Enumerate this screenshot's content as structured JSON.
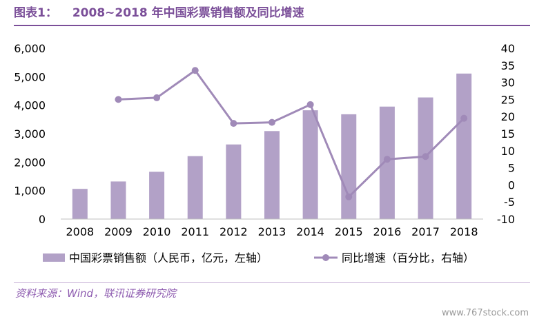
{
  "figure": {
    "label": "图表1：",
    "title": "2008~2018 年中国彩票销售额及同比增速",
    "source": "资料来源：Wind，联讯证券研究院",
    "watermark": "www.767stock.com"
  },
  "colors": {
    "accent": "#7b4f99",
    "bar": "#b2a1c7",
    "line": "#a08ab8",
    "axis": "#bfbfbf",
    "text": "#000000"
  },
  "chart_data": {
    "type": "bar",
    "categories": [
      "2008",
      "2009",
      "2010",
      "2011",
      "2012",
      "2013",
      "2014",
      "2015",
      "2016",
      "2017",
      "2018"
    ],
    "series": [
      {
        "name": "中国彩票销售额（人民币，亿元，左轴）",
        "type": "bar",
        "axis": "left",
        "values": [
          1060,
          1320,
          1660,
          2210,
          2620,
          3090,
          3820,
          3680,
          3950,
          4270,
          5110
        ]
      },
      {
        "name": "同比增速（百分比，右轴）",
        "type": "line",
        "axis": "right",
        "values": [
          null,
          25,
          25.5,
          33.5,
          18,
          18.3,
          23.5,
          -3.5,
          7.5,
          8.3,
          19.5
        ]
      }
    ],
    "y_left": {
      "range": [
        0,
        6000
      ],
      "ticks": [
        0,
        1000,
        2000,
        3000,
        4000,
        5000,
        6000
      ],
      "tick_labels": [
        "0",
        "1,000",
        "2,000",
        "3,000",
        "4,000",
        "5,000",
        "6,000"
      ]
    },
    "y_right": {
      "range": [
        -10,
        40
      ],
      "ticks": [
        -10,
        -5,
        0,
        5,
        10,
        15,
        20,
        25,
        30,
        35,
        40
      ],
      "tick_labels": [
        "-10",
        "-5",
        "0",
        "5",
        "10",
        "15",
        "20",
        "25",
        "30",
        "35",
        "40"
      ]
    },
    "grid": false,
    "legend_position": "bottom"
  }
}
